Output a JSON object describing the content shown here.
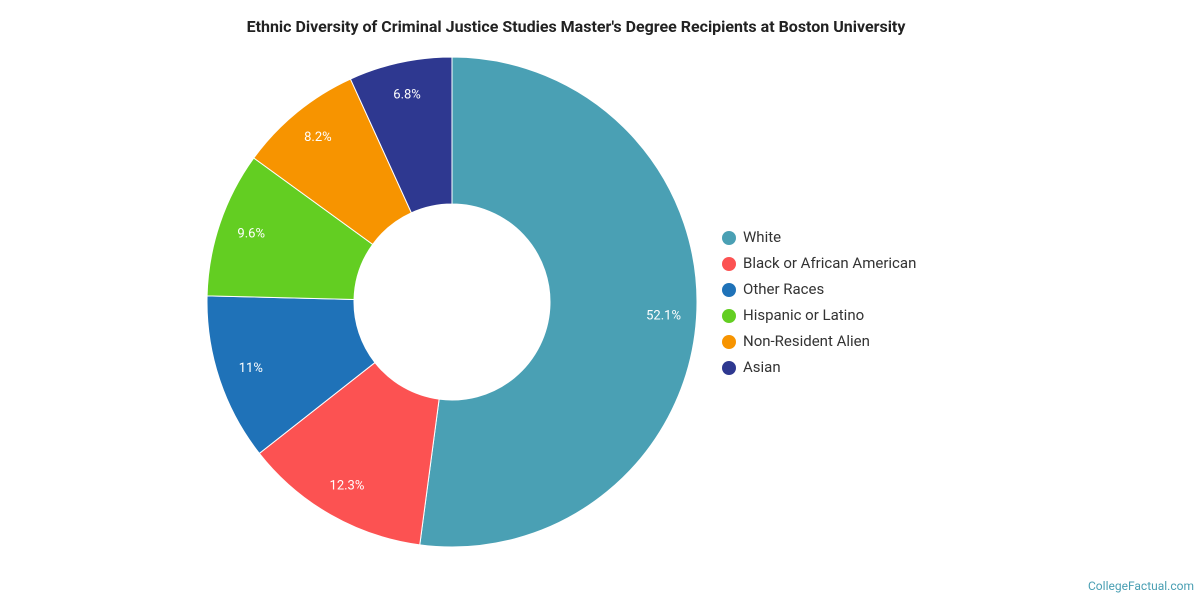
{
  "chart_data": {
    "type": "donut",
    "title": "Ethnic Diversity of Criminal Justice Studies Master's Degree Recipients at Boston University",
    "categories": [
      "White",
      "Black or African American",
      "Other Races",
      "Hispanic or Latino",
      "Non-Resident Alien",
      "Asian"
    ],
    "values": [
      52.1,
      12.3,
      11,
      9.6,
      8.2,
      6.8
    ],
    "value_labels": [
      "52.1%",
      "12.3%",
      "11%",
      "9.6%",
      "8.2%",
      "6.8%"
    ],
    "colors": [
      "#4aa0b4",
      "#fc5252",
      "#1f72b8",
      "#63ce22",
      "#f79400",
      "#2e3890"
    ],
    "legend": "right",
    "source": "CollegeFactual.com"
  }
}
